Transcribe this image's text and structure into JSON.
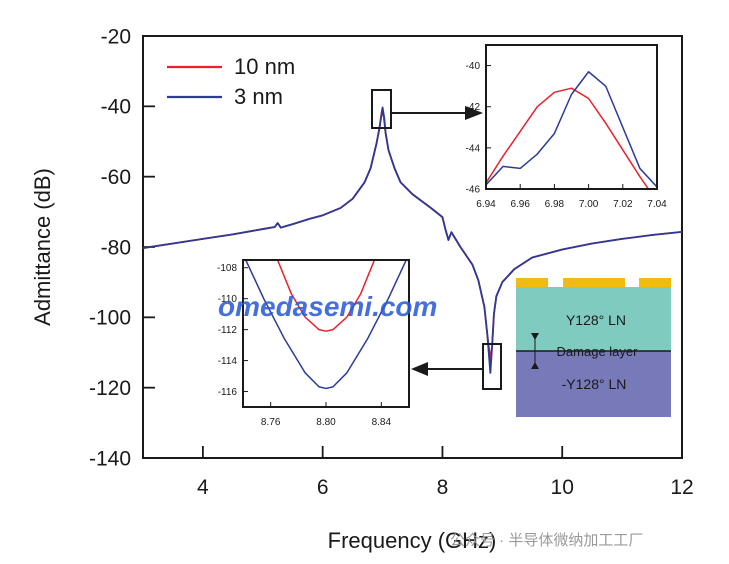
{
  "chart_data": [
    {
      "type": "line",
      "xlabel": "Frequency (GHz)",
      "ylabel": "Admittance (dB)",
      "xlim": [
        3,
        12
      ],
      "ylim": [
        -140,
        -20
      ],
      "xticks": [
        "4",
        "6",
        "8",
        "10",
        "12"
      ],
      "yticks": [
        "-20",
        "-40",
        "-60",
        "-80",
        "-100",
        "-120",
        "-140"
      ],
      "legend_position": "top-left",
      "grid": false,
      "series": [
        {
          "name": "10 nm",
          "color": "#e8212b",
          "points": [
            [
              3.0,
              -80.3
            ],
            [
              3.5,
              -79.0
            ],
            [
              4.0,
              -77.7
            ],
            [
              4.5,
              -76.4
            ],
            [
              5.0,
              -74.9
            ],
            [
              5.2,
              -74.3
            ],
            [
              5.25,
              -73.2
            ],
            [
              5.3,
              -74.5
            ],
            [
              5.5,
              -73.5
            ],
            [
              5.8,
              -71.9
            ],
            [
              6.0,
              -71.0
            ],
            [
              6.3,
              -68.9
            ],
            [
              6.5,
              -66.3
            ],
            [
              6.7,
              -61.6
            ],
            [
              6.8,
              -57.6
            ],
            [
              6.9,
              -50.5
            ],
            [
              6.95,
              -46.0
            ],
            [
              6.99,
              -41.2
            ],
            [
              7.02,
              -43.0
            ],
            [
              7.05,
              -47.5
            ],
            [
              7.1,
              -52.5
            ],
            [
              7.2,
              -57.6
            ],
            [
              7.3,
              -61.6
            ],
            [
              7.5,
              -65.0
            ],
            [
              7.8,
              -68.8
            ],
            [
              8.0,
              -71.5
            ],
            [
              8.05,
              -75.0
            ],
            [
              8.1,
              -78.0
            ],
            [
              8.15,
              -75.8
            ],
            [
              8.3,
              -80.0
            ],
            [
              8.5,
              -85.0
            ],
            [
              8.6,
              -89.5
            ],
            [
              8.7,
              -97.0
            ],
            [
              8.75,
              -105.0
            ],
            [
              8.8,
              -112.0
            ],
            [
              8.83,
              -108.0
            ],
            [
              8.86,
              -99.0
            ],
            [
              8.9,
              -94.0
            ],
            [
              9.0,
              -90.0
            ],
            [
              9.2,
              -86.3
            ],
            [
              9.5,
              -83.0
            ],
            [
              10.0,
              -80.7
            ],
            [
              10.5,
              -79.0
            ],
            [
              11.0,
              -77.7
            ],
            [
              11.5,
              -76.6
            ],
            [
              12.0,
              -75.7
            ]
          ]
        },
        {
          "name": "3 nm",
          "color": "#2b3b97",
          "points": [
            [
              3.0,
              -80.3
            ],
            [
              3.5,
              -79.0
            ],
            [
              4.0,
              -77.7
            ],
            [
              4.5,
              -76.4
            ],
            [
              5.0,
              -74.9
            ],
            [
              5.2,
              -74.3
            ],
            [
              5.25,
              -73.2
            ],
            [
              5.3,
              -74.5
            ],
            [
              5.5,
              -73.5
            ],
            [
              5.8,
              -71.9
            ],
            [
              6.0,
              -71.0
            ],
            [
              6.3,
              -68.9
            ],
            [
              6.5,
              -66.3
            ],
            [
              6.7,
              -61.6
            ],
            [
              6.8,
              -57.6
            ],
            [
              6.9,
              -50.5
            ],
            [
              6.95,
              -46.0
            ],
            [
              7.0,
              -40.3
            ],
            [
              7.03,
              -43.5
            ],
            [
              7.05,
              -47.5
            ],
            [
              7.1,
              -52.5
            ],
            [
              7.2,
              -57.6
            ],
            [
              7.3,
              -61.6
            ],
            [
              7.5,
              -65.0
            ],
            [
              7.8,
              -68.8
            ],
            [
              8.0,
              -71.5
            ],
            [
              8.05,
              -75.0
            ],
            [
              8.1,
              -78.0
            ],
            [
              8.15,
              -75.8
            ],
            [
              8.3,
              -80.0
            ],
            [
              8.5,
              -85.0
            ],
            [
              8.6,
              -89.5
            ],
            [
              8.7,
              -97.0
            ],
            [
              8.75,
              -105.0
            ],
            [
              8.8,
              -115.8
            ],
            [
              8.83,
              -108.0
            ],
            [
              8.86,
              -99.0
            ],
            [
              8.9,
              -94.0
            ],
            [
              9.0,
              -90.0
            ],
            [
              9.2,
              -86.3
            ],
            [
              9.5,
              -83.0
            ],
            [
              10.0,
              -80.7
            ],
            [
              10.5,
              -79.0
            ],
            [
              11.0,
              -77.7
            ],
            [
              11.5,
              -76.6
            ],
            [
              12.0,
              -75.7
            ]
          ]
        }
      ]
    },
    {
      "type": "line",
      "xlim": [
        6.94,
        7.04
      ],
      "ylim": [
        -46,
        -39
      ],
      "xticks": [
        "6.94",
        "6.96",
        "6.98",
        "7.00",
        "7.02",
        "7.04"
      ],
      "yticks": [
        "-40",
        "-42",
        "-44",
        "-46"
      ],
      "series": [
        {
          "name": "10 nm",
          "color": "#e8212b",
          "points": [
            [
              6.94,
              -45.7
            ],
            [
              6.95,
              -44.4
            ],
            [
              6.96,
              -43.2
            ],
            [
              6.97,
              -42.0
            ],
            [
              6.98,
              -41.3
            ],
            [
              6.99,
              -41.1
            ],
            [
              7.0,
              -41.6
            ],
            [
              7.01,
              -42.8
            ],
            [
              7.02,
              -44.1
            ],
            [
              7.03,
              -45.4
            ],
            [
              7.035,
              -46.0
            ]
          ]
        },
        {
          "name": "3 nm",
          "color": "#2b3b97",
          "points": [
            [
              6.94,
              -45.8
            ],
            [
              6.95,
              -44.9
            ],
            [
              6.96,
              -45.0
            ],
            [
              6.97,
              -44.3
            ],
            [
              6.98,
              -43.3
            ],
            [
              6.99,
              -41.4
            ],
            [
              7.0,
              -40.3
            ],
            [
              7.01,
              -41.0
            ],
            [
              7.02,
              -43.0
            ],
            [
              7.03,
              -45.0
            ],
            [
              7.04,
              -45.9
            ]
          ]
        }
      ]
    },
    {
      "type": "line",
      "xlim": [
        8.74,
        8.86
      ],
      "ylim": [
        -117,
        -107.5
      ],
      "xticks": [
        "8.76",
        "8.80",
        "8.84"
      ],
      "yticks": [
        "-108",
        "-110",
        "-112",
        "-114",
        "-116"
      ],
      "series": [
        {
          "name": "10 nm",
          "color": "#e8212b",
          "points": [
            [
              8.765,
              -107.5
            ],
            [
              8.775,
              -109.7
            ],
            [
              8.785,
              -111.2
            ],
            [
              8.795,
              -112.0
            ],
            [
              8.8,
              -112.1
            ],
            [
              8.805,
              -112.0
            ],
            [
              8.815,
              -111.2
            ],
            [
              8.825,
              -109.7
            ],
            [
              8.835,
              -107.5
            ]
          ]
        },
        {
          "name": "3 nm",
          "color": "#2b3b97",
          "points": [
            [
              8.742,
              -107.5
            ],
            [
              8.755,
              -110.0
            ],
            [
              8.77,
              -112.6
            ],
            [
              8.785,
              -114.8
            ],
            [
              8.795,
              -115.7
            ],
            [
              8.8,
              -115.8
            ],
            [
              8.805,
              -115.7
            ],
            [
              8.815,
              -114.8
            ],
            [
              8.83,
              -112.6
            ],
            [
              8.845,
              -110.0
            ],
            [
              8.858,
              -107.5
            ]
          ]
        }
      ]
    }
  ],
  "schematic": {
    "layer_top": "Y128° LN",
    "layer_middle": "Damage layer",
    "layer_bottom": "-Y128° LN",
    "colors": {
      "electrode": "#f5b914",
      "top": "#7fcbc0",
      "bottom": "#7879b8"
    }
  },
  "watermark": {
    "overlay_text": "omedasemi.com",
    "footer_text": "公众号 · 半导体微纳加工工厂"
  }
}
